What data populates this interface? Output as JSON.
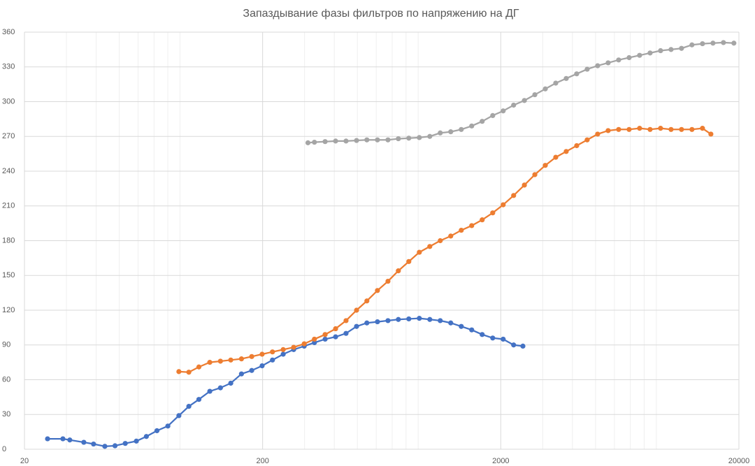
{
  "chart_data": {
    "type": "line",
    "title": "Запаздывание фазы фильтров по напряжению на ДГ",
    "xscale": "log",
    "xlim": [
      20,
      20000
    ],
    "xticks": [
      20,
      200,
      2000,
      20000
    ],
    "ylim": [
      0,
      360
    ],
    "yticks": [
      0,
      30,
      60,
      90,
      120,
      150,
      180,
      210,
      240,
      270,
      300,
      330,
      360
    ],
    "grid": true,
    "minor_grid": true,
    "series": [
      {
        "color": "#4472c4",
        "x": [
          25,
          29,
          31,
          35.5,
          39,
          43.5,
          48,
          53,
          59,
          65,
          72,
          80,
          89,
          98,
          108,
          120,
          133,
          147,
          163,
          180,
          199,
          220,
          244,
          270,
          299,
          330,
          366,
          405,
          448,
          496,
          548,
          607,
          672,
          743,
          822,
          910,
          1007,
          1114,
          1233,
          1365,
          1510,
          1671,
          1850,
          2047,
          2265,
          2477
        ],
        "values": [
          9,
          9,
          8,
          6,
          4.5,
          2.5,
          3,
          5,
          7,
          11,
          16,
          20,
          29,
          37,
          43,
          50,
          53,
          57,
          65,
          68,
          72,
          77,
          82,
          86,
          89,
          92,
          95,
          97,
          100,
          106,
          109,
          110,
          111,
          112,
          112.5,
          113,
          112,
          111,
          109,
          106,
          103,
          99,
          96,
          95,
          90,
          89
        ]
      },
      {
        "color": "#ed7d31",
        "x": [
          89,
          98,
          108,
          120,
          133,
          147,
          163,
          180,
          199,
          220,
          244,
          270,
          299,
          330,
          366,
          405,
          448,
          496,
          548,
          607,
          672,
          743,
          822,
          910,
          1007,
          1114,
          1233,
          1365,
          1510,
          1671,
          1850,
          2047,
          2265,
          2513,
          2780,
          3076,
          3403,
          3766,
          4167,
          4611,
          5102,
          5647,
          6252,
          6918,
          7656,
          8472,
          9376,
          10375,
          11480,
          12700,
          14060,
          15250
        ],
        "values": [
          67,
          66.5,
          71,
          75,
          76,
          77,
          78,
          80,
          82,
          84,
          86,
          88,
          91,
          95,
          99,
          104,
          111,
          120,
          128,
          137,
          145,
          154,
          162,
          170,
          175,
          180,
          184,
          189,
          193,
          198,
          204,
          211,
          219,
          228,
          237,
          245,
          252,
          257,
          262,
          267,
          272,
          275,
          276,
          276,
          277,
          276,
          277,
          276,
          276,
          276,
          277,
          272
        ]
      },
      {
        "color": "#a5a5a5",
        "x": [
          310,
          330,
          366,
          405,
          448,
          496,
          548,
          607,
          672,
          743,
          822,
          910,
          1007,
          1114,
          1233,
          1365,
          1510,
          1671,
          1850,
          2047,
          2265,
          2513,
          2780,
          3076,
          3403,
          3766,
          4167,
          4611,
          5102,
          5647,
          6252,
          6918,
          7656,
          8472,
          9376,
          10375,
          11480,
          12700,
          14060,
          15560,
          17220,
          19050
        ],
        "values": [
          264.5,
          265,
          265.5,
          266,
          266,
          266.5,
          267,
          267,
          267,
          268,
          268.5,
          269,
          270,
          273,
          274,
          276,
          279,
          283,
          288,
          292,
          297,
          301,
          306,
          311,
          316,
          320,
          324,
          328,
          331,
          333.5,
          336,
          338,
          340,
          342,
          344,
          345,
          346,
          349,
          350,
          350.5,
          351,
          350.5
        ]
      }
    ]
  }
}
